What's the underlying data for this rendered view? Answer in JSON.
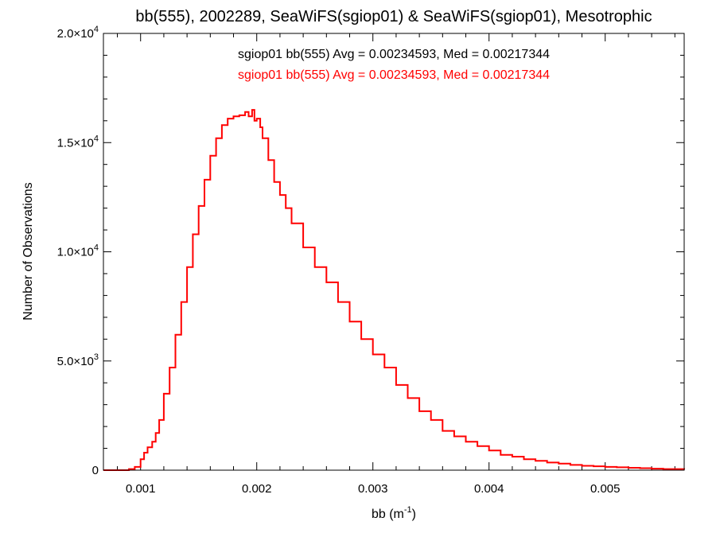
{
  "chart_data": {
    "type": "histogram",
    "title": "bb(555), 2002289, SeaWiFS(sgiop01) & SeaWiFS(sgiop01), Mesotrophic",
    "xlabel": "bb (m",
    "xlabel_sup": "-1",
    "xlabel_close": ")",
    "ylabel": "Number of Observations",
    "xlim": [
      0.00068,
      0.00568
    ],
    "ylim": [
      0,
      20000
    ],
    "x_ticks": [
      {
        "value": 0.001,
        "label": "0.001"
      },
      {
        "value": 0.002,
        "label": "0.002"
      },
      {
        "value": 0.003,
        "label": "0.003"
      },
      {
        "value": 0.004,
        "label": "0.004"
      },
      {
        "value": 0.005,
        "label": "0.005"
      }
    ],
    "y_ticks": [
      {
        "value": 0,
        "label": "0",
        "sup": ""
      },
      {
        "value": 5000,
        "label": "5.0×10",
        "sup": "3"
      },
      {
        "value": 10000,
        "label": "1.0×10",
        "sup": "4"
      },
      {
        "value": 15000,
        "label": "1.5×10",
        "sup": "4"
      },
      {
        "value": 20000,
        "label": "2.0×10",
        "sup": "4"
      }
    ],
    "annotations": [
      {
        "text": "sgiop01 bb(555) Avg = 0.00234593, Med = 0.00217344",
        "color": "#000000"
      },
      {
        "text": "sgiop01 bb(555) Avg = 0.00234593, Med = 0.00217344",
        "color": "#ff0000"
      }
    ],
    "series": [
      {
        "color": "#ff0000",
        "x": [
          0.00068,
          0.0008,
          0.0009,
          0.00095,
          0.001,
          0.00103,
          0.00106,
          0.0011,
          0.00113,
          0.00116,
          0.0012,
          0.00125,
          0.0013,
          0.00135,
          0.0014,
          0.00145,
          0.0015,
          0.00155,
          0.0016,
          0.00165,
          0.0017,
          0.00175,
          0.0018,
          0.00185,
          0.0019,
          0.00193,
          0.00196,
          0.00198,
          0.002,
          0.00203,
          0.00205,
          0.0021,
          0.00215,
          0.0022,
          0.00225,
          0.0023,
          0.0024,
          0.0025,
          0.0026,
          0.0027,
          0.0028,
          0.0029,
          0.003,
          0.0031,
          0.0032,
          0.0033,
          0.0034,
          0.0035,
          0.0036,
          0.0037,
          0.0038,
          0.0039,
          0.004,
          0.0041,
          0.0042,
          0.0043,
          0.0044,
          0.0045,
          0.0046,
          0.0047,
          0.0048,
          0.0049,
          0.005,
          0.0051,
          0.0052,
          0.0053,
          0.0054,
          0.0055,
          0.00568
        ],
        "y": [
          0,
          0,
          50,
          150,
          500,
          800,
          1050,
          1300,
          1700,
          2300,
          3500,
          4700,
          6200,
          7700,
          9300,
          10800,
          12100,
          13300,
          14400,
          15200,
          15800,
          16100,
          16200,
          16250,
          16400,
          16200,
          16500,
          16000,
          16100,
          15700,
          15200,
          14200,
          13200,
          12600,
          12000,
          11300,
          10200,
          9300,
          8600,
          7700,
          6800,
          6000,
          5300,
          4700,
          3900,
          3300,
          2700,
          2300,
          1800,
          1550,
          1300,
          1100,
          900,
          700,
          620,
          500,
          430,
          350,
          300,
          240,
          200,
          180,
          150,
          130,
          110,
          90,
          70,
          50,
          30
        ]
      }
    ]
  }
}
